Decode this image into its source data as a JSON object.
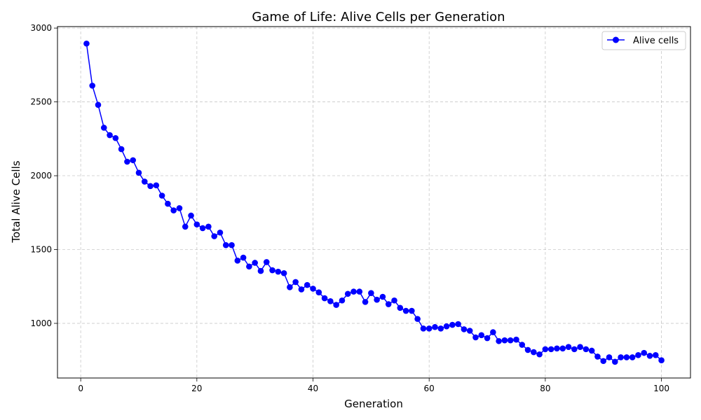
{
  "chart_data": {
    "type": "line",
    "title": "Game of Life: Alive Cells per Generation",
    "xlabel": "Generation",
    "ylabel": "Total Alive Cells",
    "xlim": [
      -4,
      105
    ],
    "ylim": [
      630,
      3010
    ],
    "xticks": [
      0,
      20,
      40,
      60,
      80,
      100
    ],
    "yticks": [
      1000,
      1500,
      2000,
      2500,
      3000
    ],
    "grid": true,
    "grid_style": "dashed",
    "legend_position": "upper right",
    "series": [
      {
        "name": "Alive cells",
        "color": "#0000ff",
        "marker": "circle",
        "x": [
          1,
          2,
          3,
          4,
          5,
          6,
          7,
          8,
          9,
          10,
          11,
          12,
          13,
          14,
          15,
          16,
          17,
          18,
          19,
          20,
          21,
          22,
          23,
          24,
          25,
          26,
          27,
          28,
          29,
          30,
          31,
          32,
          33,
          34,
          35,
          36,
          37,
          38,
          39,
          40,
          41,
          42,
          43,
          44,
          45,
          46,
          47,
          48,
          49,
          50,
          51,
          52,
          53,
          54,
          55,
          56,
          57,
          58,
          59,
          60,
          61,
          62,
          63,
          64,
          65,
          66,
          67,
          68,
          69,
          70,
          71,
          72,
          73,
          74,
          75,
          76,
          77,
          78,
          79,
          80,
          81,
          82,
          83,
          84,
          85,
          86,
          87,
          88,
          89,
          90,
          91,
          92,
          93,
          94,
          95,
          96,
          97,
          98,
          99,
          100
        ],
        "values": [
          2895,
          2610,
          2480,
          2325,
          2275,
          2255,
          2180,
          2095,
          2105,
          2020,
          1960,
          1930,
          1935,
          1865,
          1810,
          1765,
          1780,
          1655,
          1730,
          1670,
          1645,
          1655,
          1590,
          1615,
          1530,
          1530,
          1425,
          1445,
          1385,
          1410,
          1355,
          1415,
          1360,
          1350,
          1340,
          1245,
          1280,
          1230,
          1260,
          1235,
          1210,
          1170,
          1150,
          1125,
          1155,
          1200,
          1215,
          1215,
          1145,
          1205,
          1160,
          1180,
          1130,
          1155,
          1105,
          1085,
          1085,
          1030,
          965,
          965,
          975,
          965,
          980,
          990,
          995,
          960,
          950,
          905,
          920,
          900,
          940,
          880,
          885,
          885,
          890,
          855,
          820,
          805,
          790,
          825,
          825,
          830,
          830,
          840,
          825,
          840,
          825,
          815,
          775,
          745,
          770,
          740,
          770,
          770,
          770,
          785,
          800,
          780,
          785,
          750
        ]
      }
    ]
  }
}
